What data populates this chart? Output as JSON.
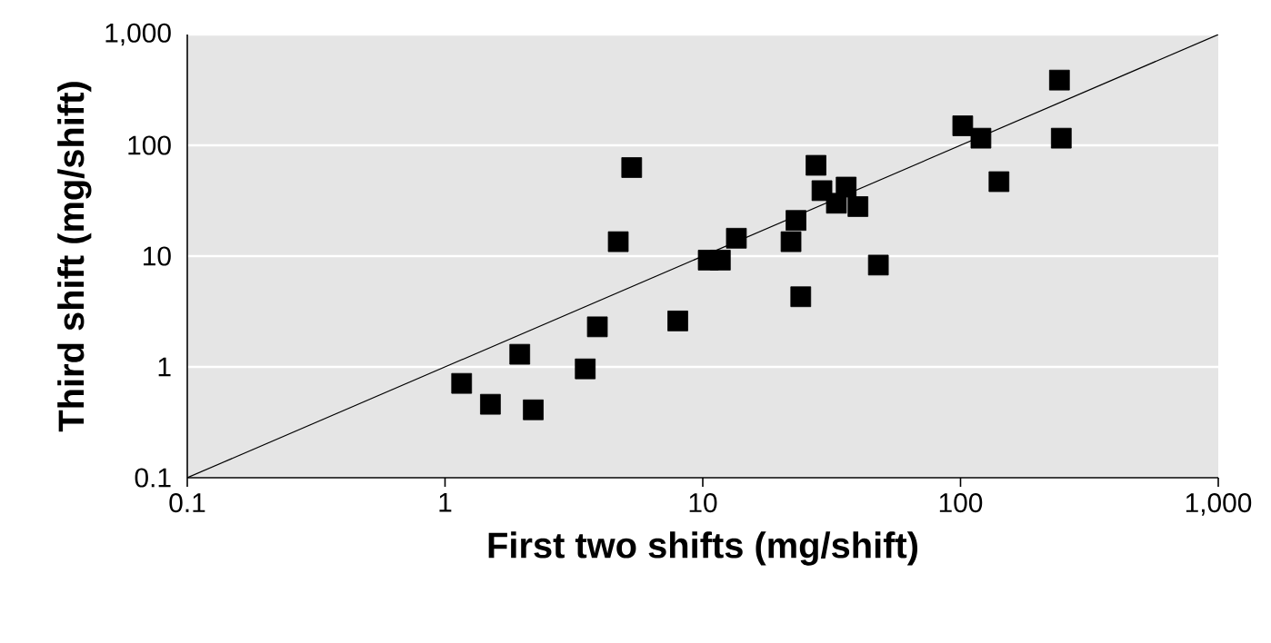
{
  "chart_data": {
    "type": "scatter",
    "xlabel": "First two shifts (mg/shift)",
    "ylabel": "Third shift (mg/shift)",
    "log": "xy",
    "grid": "y",
    "xlim": [
      0.1,
      1000
    ],
    "ylim": [
      0.1,
      1000
    ],
    "xticks": [
      0.1,
      1,
      10,
      100,
      {
        "value": 1000,
        "label": "1,000"
      }
    ],
    "yticks": [
      0.1,
      1,
      10,
      100,
      {
        "value": 1000,
        "label": "1,000"
      }
    ],
    "series": [
      {
        "color": "#000000",
        "marker": "square",
        "x": [
          1.16,
          1.5,
          1.95,
          2.2,
          3.5,
          3.9,
          4.7,
          5.3,
          8.0,
          10.5,
          11.7,
          13.5,
          22,
          23,
          24,
          27.5,
          29,
          33,
          36,
          40,
          48,
          102,
          120,
          141,
          242,
          246
        ],
        "values": [
          0.71,
          0.46,
          1.3,
          0.41,
          0.96,
          2.3,
          13.5,
          63,
          2.6,
          9.2,
          9.2,
          14.5,
          13.5,
          21,
          4.3,
          66,
          39,
          30,
          42,
          28,
          8.3,
          150,
          116,
          47,
          388,
          116
        ]
      },
      {
        "type": "line",
        "color": "#000000",
        "marker": "none",
        "x": [
          0.1,
          1000
        ],
        "values": [
          0.1,
          1000
        ]
      }
    ]
  }
}
